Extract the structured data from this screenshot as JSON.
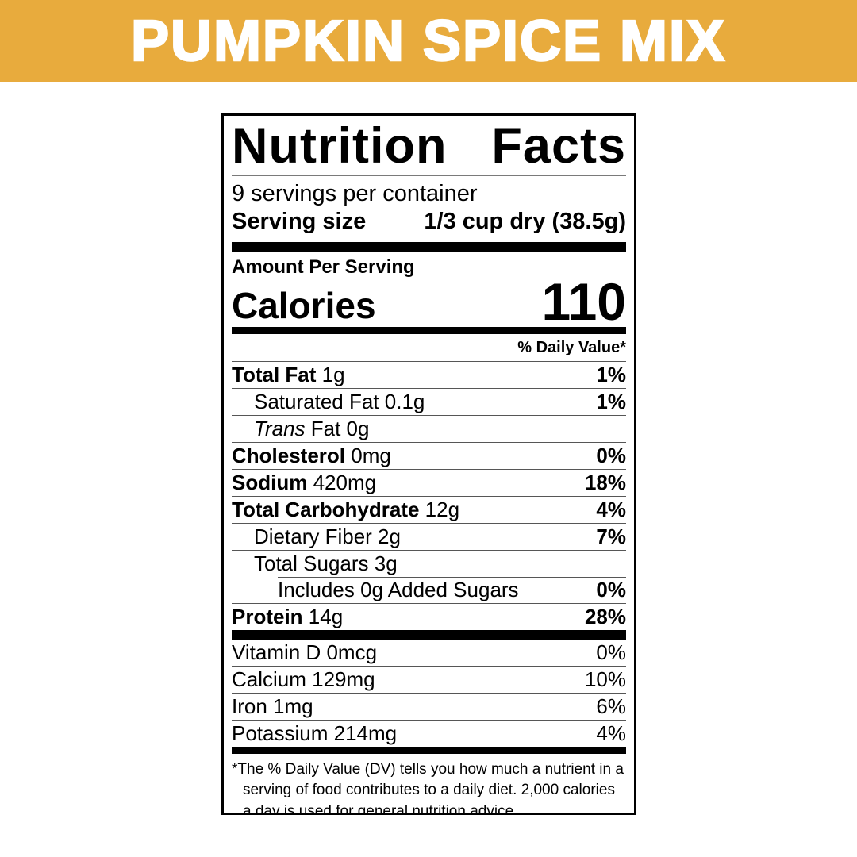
{
  "banner": {
    "title": "PUMPKIN SPICE MIX",
    "bg_color": "#E8AB3D",
    "text_color": "#FFFFFF"
  },
  "label": {
    "title_words": [
      "Nutrition",
      "Facts"
    ],
    "servings_per_container": "9 servings per container",
    "serving_size_label": "Serving size",
    "serving_size_value": "1/3 cup dry (38.5g)",
    "amount_per_serving": "Amount Per Serving",
    "calories_label": "Calories",
    "calories_value": "110",
    "daily_value_header": "% Daily Value*",
    "rows": [
      {
        "bold": "Total Fat",
        "italic": "",
        "text": " 1g",
        "dv": "1%"
      },
      {
        "bold": "",
        "italic": "",
        "text": "Saturated Fat 0.1g",
        "dv": "1%"
      },
      {
        "bold": "",
        "italic": "Trans",
        "text": " Fat 0g",
        "dv": ""
      },
      {
        "bold": "Cholesterol",
        "italic": "",
        "text": " 0mg",
        "dv": "0%"
      },
      {
        "bold": "Sodium",
        "italic": "",
        "text": " 420mg",
        "dv": "18%"
      },
      {
        "bold": "Total Carbohydrate",
        "italic": "",
        "text": " 12g",
        "dv": "4%"
      },
      {
        "bold": "",
        "italic": "",
        "text": "Dietary Fiber 2g",
        "dv": "7%"
      },
      {
        "bold": "",
        "italic": "",
        "text": "Total Sugars 3g",
        "dv": ""
      },
      {
        "bold": "",
        "italic": "",
        "text": "Includes 0g Added Sugars",
        "dv": "0%"
      },
      {
        "bold": "Protein",
        "italic": "",
        "text": " 14g",
        "dv": "28%"
      }
    ],
    "vitamins": [
      {
        "text": "Vitamin D 0mcg",
        "dv": "0%"
      },
      {
        "text": "Calcium 129mg",
        "dv": "10%"
      },
      {
        "text": "Iron 1mg",
        "dv": "6%"
      },
      {
        "text": "Potassium 214mg",
        "dv": "4%"
      }
    ],
    "footnote_marker": "*",
    "footnote": "The % Daily Value (DV) tells you how much a nutrient in a serving of food contributes to a daily diet. 2,000 calories a day is used for general nutrition advice."
  }
}
